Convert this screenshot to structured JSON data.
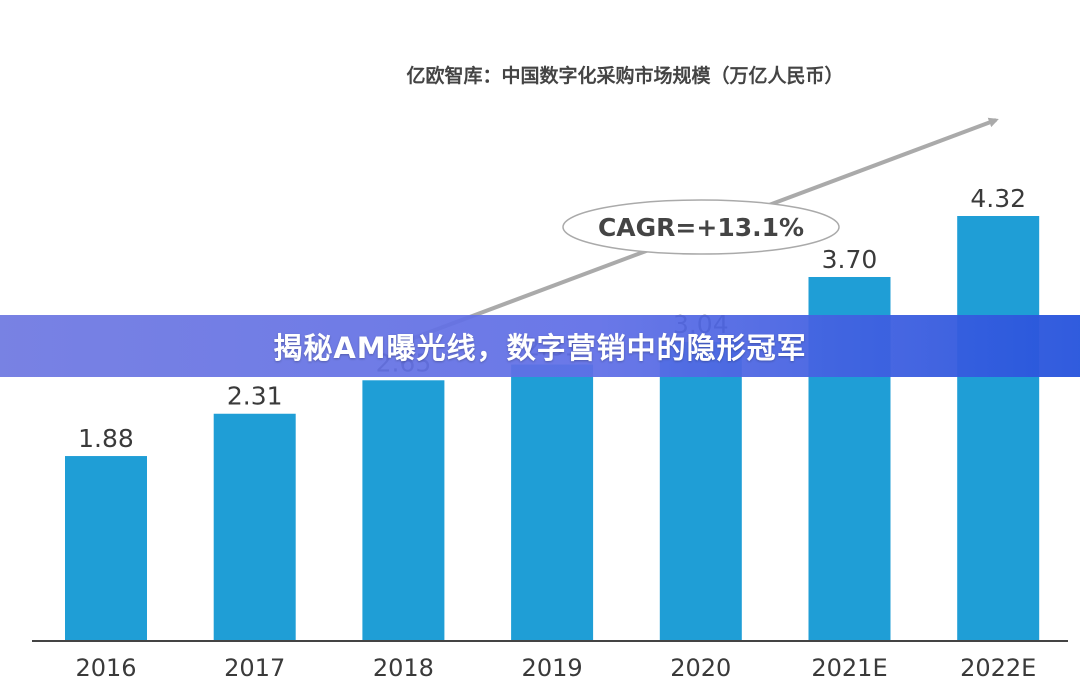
{
  "banner": {
    "title": "揭秘AM曝光线，数字营销中的隐形冠军"
  },
  "chart_data": {
    "type": "bar",
    "title": "亿欧智库：中国数字化采购市场规模（万亿人民币）",
    "categories": [
      "2016",
      "2017",
      "2018",
      "2019",
      "2020",
      "2021E",
      "2022E"
    ],
    "values": [
      1.88,
      2.31,
      2.65,
      2.81,
      3.04,
      3.7,
      4.32
    ],
    "value_labels": [
      "1.88",
      "2.31",
      "2.65",
      "2.81",
      "3.04",
      "3.70",
      "4.32"
    ],
    "ylim": [
      0,
      4.32
    ],
    "xlabel": "",
    "ylabel": "",
    "grid": false,
    "annotation": "CAGR=+13.1%",
    "colors": {
      "bar": "#1f9ed6",
      "axis": "#444444",
      "arrow": "#aaaaaa",
      "title": "#444444",
      "label": "#3a3a3a"
    }
  }
}
